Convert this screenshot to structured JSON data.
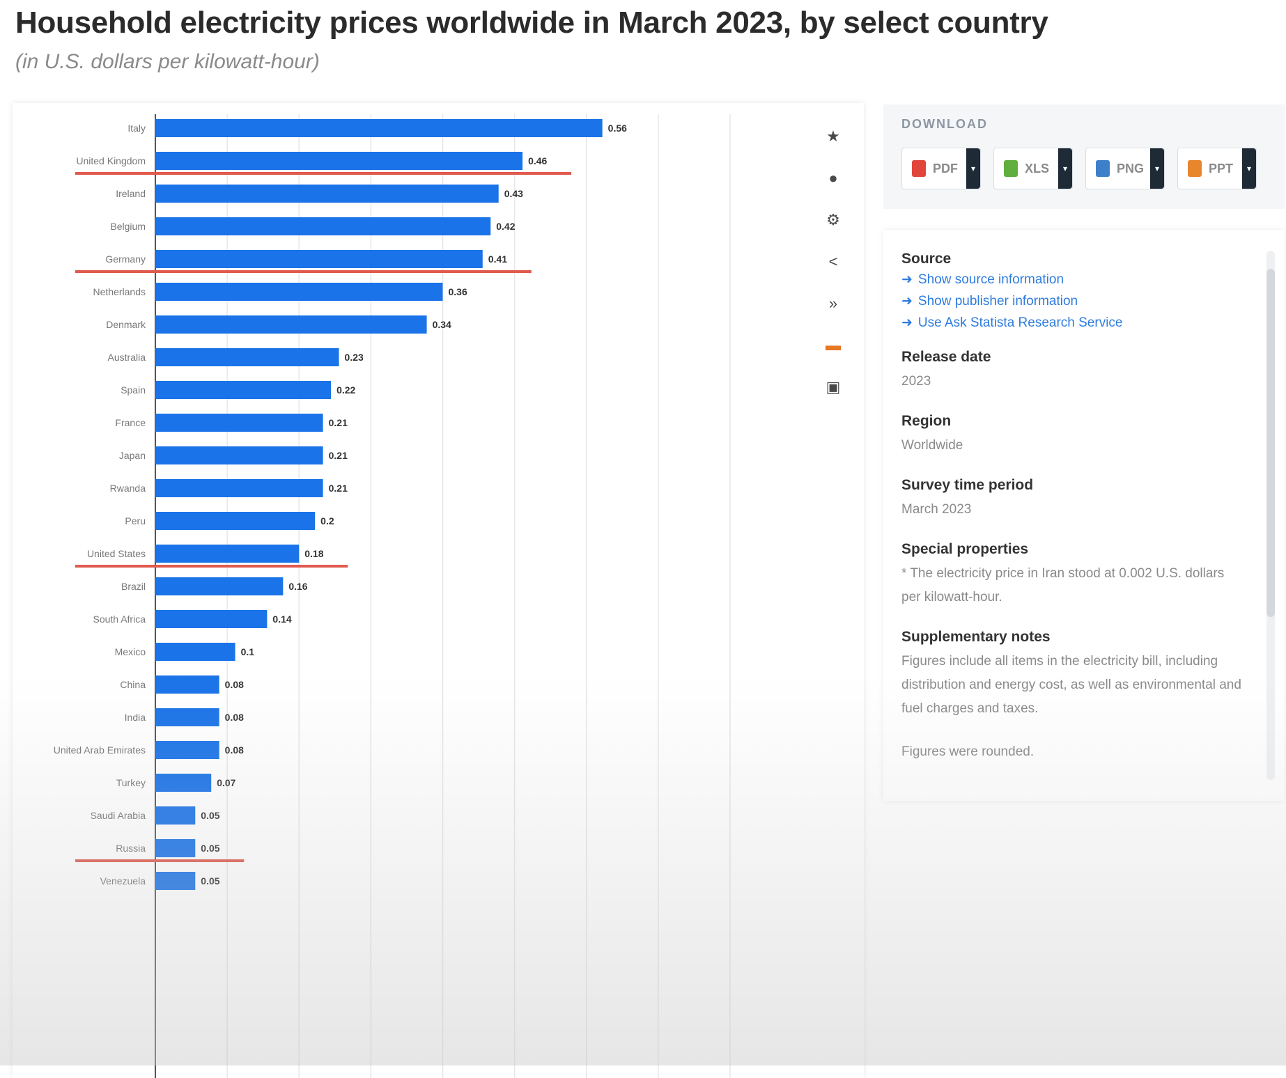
{
  "page": {
    "title": "Household electricity prices worldwide in March 2023, by select country",
    "subtitle": "(in U.S. dollars per kilowatt-hour)"
  },
  "colors": {
    "bar": "#1a73e8",
    "underline": "#e05a4e",
    "grid": "#e6e6e6",
    "link": "#2d7ce0"
  },
  "chart_data": {
    "type": "bar",
    "orientation": "horizontal",
    "title": "Household electricity prices worldwide in March 2023, by select country",
    "subtitle": "(in U.S. dollars per kilowatt-hour)",
    "xlim": [
      0,
      0.72
    ],
    "grid": true,
    "categories": [
      "Italy",
      "United Kingdom",
      "Ireland",
      "Belgium",
      "Germany",
      "Netherlands",
      "Denmark",
      "Australia",
      "Spain",
      "France",
      "Japan",
      "Rwanda",
      "Peru",
      "United States",
      "Brazil",
      "South Africa",
      "Mexico",
      "China",
      "India",
      "United Arab Emirates",
      "Turkey",
      "Saudi Arabia",
      "Russia",
      "Venezuela"
    ],
    "values": [
      0.56,
      0.46,
      0.43,
      0.42,
      0.41,
      0.36,
      0.34,
      0.23,
      0.22,
      0.21,
      0.21,
      0.21,
      0.2,
      0.18,
      0.16,
      0.14,
      0.1,
      0.08,
      0.08,
      0.08,
      0.07,
      0.05,
      0.05,
      0.05
    ],
    "value_labels": [
      "0.56",
      "0.46",
      "0.43",
      "0.42",
      "0.41",
      "0.36",
      "0.34",
      "0.23",
      "0.22",
      "0.21",
      "0.21",
      "0.21",
      "0.2",
      "0.18",
      "0.16",
      "0.14",
      "0.1",
      "0.08",
      "0.08",
      "0.08",
      "0.07",
      "0.05",
      "0.05",
      "0.05"
    ],
    "highlighted": [
      "United Kingdom",
      "Germany",
      "United States",
      "Russia"
    ]
  },
  "toolbar": {
    "icons": [
      "star-icon",
      "bell-icon",
      "gear-icon",
      "share-icon",
      "embed-icon",
      "image-icon",
      "print-icon"
    ]
  },
  "download": {
    "title": "DOWNLOAD",
    "buttons": [
      {
        "label": "PDF",
        "color": "#e0463c"
      },
      {
        "label": "XLS",
        "color": "#5fae3e"
      },
      {
        "label": "PNG",
        "color": "#3d7fc9"
      },
      {
        "label": "PPT",
        "color": "#e8862c"
      }
    ]
  },
  "info": {
    "source_heading": "Source",
    "links": [
      "Show source information",
      "Show publisher information",
      "Use Ask Statista Research Service"
    ],
    "release_heading": "Release date",
    "release_value": "2023",
    "region_heading": "Region",
    "region_value": "Worldwide",
    "survey_heading": "Survey time period",
    "survey_value": "March 2023",
    "special_heading": "Special properties",
    "special_value": "* The electricity price in Iran stood at 0.002 U.S. dollars per kilowatt-hour.",
    "notes_heading": "Supplementary notes",
    "notes_value": "Figures include all items in the electricity bill, including distribution and energy cost, as well as environmental and fuel charges and taxes.",
    "notes_value2": "Figures were rounded."
  }
}
